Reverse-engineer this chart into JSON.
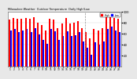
{
  "title": "Milwaukee Weather  Outdoor Temperature  Daily High/Low",
  "high_color": "#ff0000",
  "low_color": "#0000ff",
  "background_color": "#e8e8e8",
  "plot_bg_color": "#ffffff",
  "ylim": [
    0,
    100
  ],
  "ytick_values": [
    20,
    40,
    60,
    80,
    100
  ],
  "ytick_labels": [
    "20",
    "40",
    "60",
    "80",
    "100"
  ],
  "bar_width": 0.38,
  "dashed_line_x": 18.5,
  "highs": [
    85,
    88,
    87,
    87,
    88,
    87,
    90,
    80,
    75,
    65,
    87,
    85,
    70,
    78,
    88,
    78,
    80,
    83,
    70,
    62,
    52,
    68,
    65,
    70,
    95,
    98,
    88,
    87
  ],
  "lows": [
    65,
    68,
    63,
    65,
    68,
    63,
    70,
    58,
    48,
    42,
    68,
    64,
    48,
    55,
    64,
    55,
    57,
    62,
    46,
    35,
    22,
    44,
    40,
    46,
    68,
    72,
    65,
    62
  ],
  "x_labels": [
    "1",
    "2",
    "3",
    "4",
    "5",
    "6",
    "7",
    "8",
    "9",
    "10",
    "11",
    "12",
    "13",
    "14",
    "15",
    "16",
    "17",
    "18",
    "19",
    "20",
    "21",
    "22",
    "23",
    "24",
    "25",
    "26",
    "27",
    "28"
  ],
  "legend_high": "High",
  "legend_low": "Low",
  "n_bars": 28
}
